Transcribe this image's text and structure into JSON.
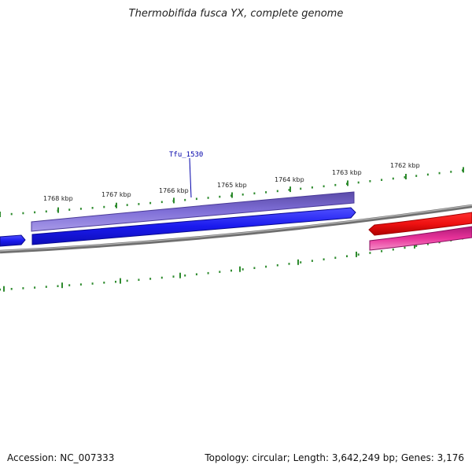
{
  "title": "Thermobifida fusca YX, complete genome",
  "accession": "Accession: NC_007333",
  "summary": "Topology: circular; Length: 3,642,249 bp; Genes: 3,176",
  "feature_label": "Tfu_1530",
  "kbp_labels": [
    "1768 kbp",
    "1767 kbp",
    "1766 kbp",
    "1765 kbp",
    "1764 kbp",
    "1763 kbp",
    "1762 kbp"
  ],
  "colors": {
    "backbone": "#7a7a7a",
    "forward_gene": "#1a1aee",
    "forward_cds": "#6a5acd",
    "reverse_gene": "#ee1111",
    "reverse_cds": "#e8339a",
    "ticks": "#2e8b2e",
    "label": "#0000aa"
  }
}
